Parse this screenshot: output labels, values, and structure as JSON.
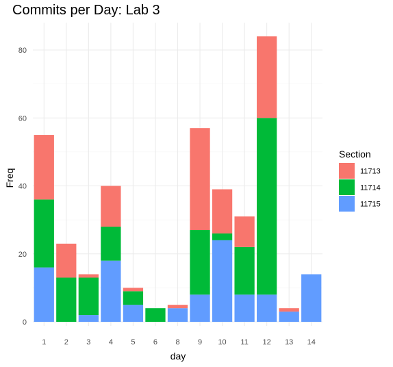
{
  "chart_data": {
    "type": "bar",
    "stacked": true,
    "title": "Commits per Day: Lab 3",
    "xlabel": "day",
    "ylabel": "Freq",
    "categories": [
      "1",
      "2",
      "3",
      "4",
      "5",
      "6",
      "8",
      "9",
      "10",
      "11",
      "12",
      "13",
      "14"
    ],
    "ylim": [
      0,
      88
    ],
    "yticks": [
      0,
      20,
      40,
      60,
      80
    ],
    "grid": true,
    "legend": {
      "title": "Section",
      "placement": "right"
    },
    "series": [
      {
        "name": "11715",
        "color": "#619CFF",
        "values": [
          16,
          0,
          2,
          18,
          5,
          0,
          4,
          8,
          24,
          8,
          8,
          3,
          14
        ]
      },
      {
        "name": "11714",
        "color": "#00BA38",
        "values": [
          20,
          13,
          11,
          10,
          4,
          4,
          0,
          19,
          2,
          14,
          52,
          0,
          0
        ]
      },
      {
        "name": "11713",
        "color": "#F8766D",
        "values": [
          19,
          10,
          1,
          12,
          1,
          0,
          1,
          30,
          13,
          9,
          24,
          1,
          0
        ]
      }
    ],
    "legend_order": [
      "11713",
      "11714",
      "11715"
    ]
  }
}
